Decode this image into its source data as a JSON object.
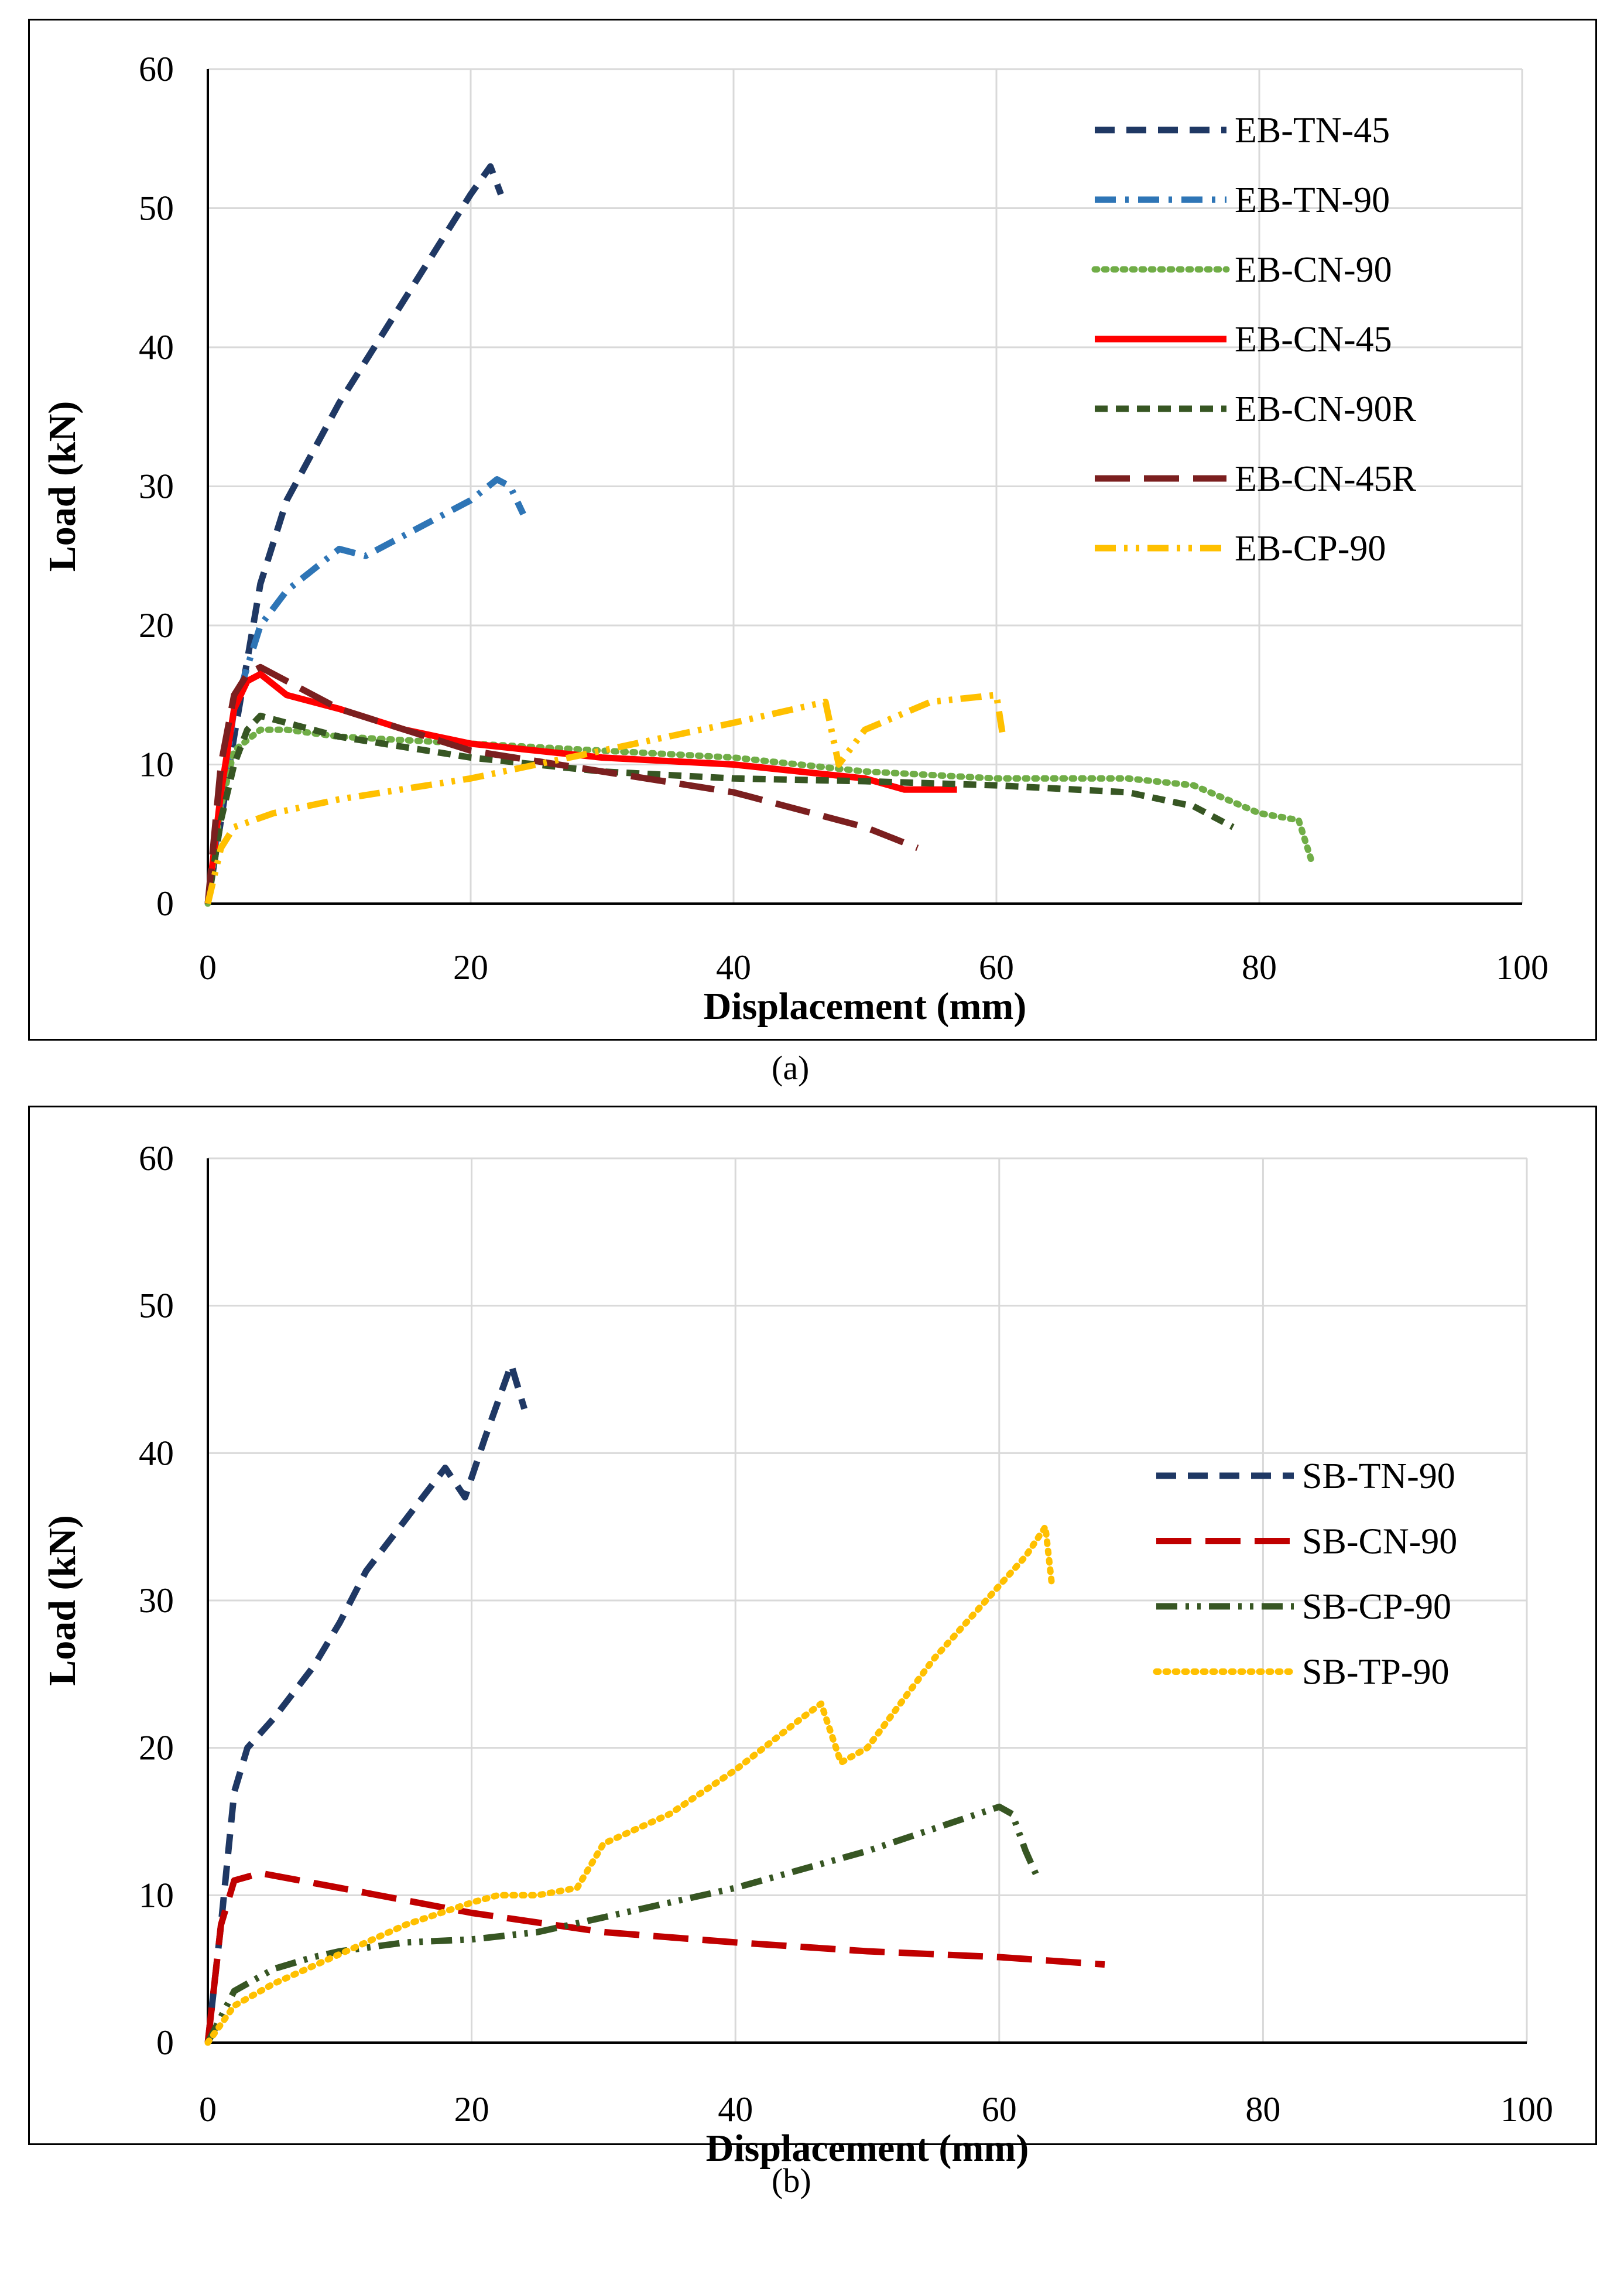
{
  "figure": {
    "captions": [
      "(a)",
      "(b)"
    ]
  },
  "chart_data": [
    {
      "type": "line",
      "panel": "(a)",
      "title": "",
      "xlabel": "Displacement (mm)",
      "ylabel": "Load (kN)",
      "xlim": [
        0,
        100
      ],
      "ylim": [
        0,
        60
      ],
      "xticks": [
        "0",
        "20",
        "40",
        "60",
        "80",
        "100"
      ],
      "yticks": [
        "0",
        "10",
        "20",
        "30",
        "40",
        "50",
        "60"
      ],
      "grid": true,
      "legend_position": "top-right",
      "series": [
        {
          "name": "EB-TN-45",
          "color": "#1f3864",
          "dash": "dash",
          "x": [
            0,
            2,
            4,
            6,
            8,
            10,
            12,
            14,
            16,
            18,
            20,
            21.5,
            22.3
          ],
          "y": [
            0,
            12,
            23,
            29,
            32.5,
            36,
            39,
            42,
            45,
            48,
            51,
            53,
            51
          ]
        },
        {
          "name": "EB-TN-90",
          "color": "#2e75b6",
          "dash": "dashdot",
          "x": [
            0,
            2,
            4,
            6,
            8,
            10,
            12,
            14,
            16,
            18,
            20,
            22,
            23,
            24
          ],
          "y": [
            0,
            14,
            20,
            22.5,
            24,
            25.5,
            25,
            26,
            27,
            28,
            29,
            30.5,
            30,
            28
          ]
        },
        {
          "name": "EB-CN-90",
          "color": "#70ad47",
          "dash": "dot",
          "x": [
            0,
            1,
            2,
            4,
            6,
            10,
            20,
            30,
            40,
            50,
            60,
            70,
            75,
            80,
            83,
            84
          ],
          "y": [
            0,
            7,
            11,
            12.5,
            12.5,
            12,
            11.5,
            11,
            10.5,
            9.5,
            9,
            9,
            8.5,
            6.5,
            6,
            3
          ]
        },
        {
          "name": "EB-CN-45",
          "color": "#ff0000",
          "dash": "solid",
          "x": [
            0,
            1,
            2,
            3,
            4,
            6,
            10,
            15,
            20,
            25,
            30,
            40,
            50,
            53,
            57
          ],
          "y": [
            0,
            8,
            14,
            16,
            16.5,
            15,
            14,
            12.5,
            11.5,
            11,
            10.5,
            10,
            9,
            8.2,
            8.2
          ]
        },
        {
          "name": "EB-CN-90R",
          "color": "#375623",
          "dash": "shortdash",
          "x": [
            0,
            1,
            2,
            3,
            4,
            6,
            10,
            20,
            30,
            40,
            50,
            60,
            70,
            75,
            78
          ],
          "y": [
            0,
            6,
            10,
            12.5,
            13.5,
            13,
            12,
            10.5,
            9.5,
            9,
            8.8,
            8.5,
            8,
            7,
            5.5
          ]
        },
        {
          "name": "EB-CN-45R",
          "color": "#7b1f1f",
          "dash": "longdash",
          "x": [
            0,
            1,
            2,
            3,
            4,
            6,
            10,
            20,
            30,
            40,
            50,
            54
          ],
          "y": [
            0,
            10,
            15,
            16.5,
            17,
            16,
            14,
            11,
            9.5,
            8,
            5.5,
            4
          ]
        },
        {
          "name": "EB-CP-90",
          "color": "#ffc000",
          "dash": "dashdotdot",
          "x": [
            0,
            1,
            2,
            5,
            10,
            20,
            30,
            40,
            47,
            48,
            50,
            55,
            60,
            60.5
          ],
          "y": [
            0,
            4,
            5.5,
            6.5,
            7.5,
            9,
            11,
            13,
            14.5,
            10,
            12.5,
            14.5,
            15,
            12
          ]
        }
      ]
    },
    {
      "type": "line",
      "panel": "(b)",
      "title": "",
      "xlabel": "Displacement (mm)",
      "ylabel": "Load (kN)",
      "xlim": [
        0,
        100
      ],
      "ylim": [
        0,
        60
      ],
      "xticks": [
        "0",
        "20",
        "40",
        "60",
        "80",
        "100"
      ],
      "yticks": [
        "0",
        "10",
        "20",
        "30",
        "40",
        "50",
        "60"
      ],
      "grid": true,
      "legend_position": "right",
      "series": [
        {
          "name": "SB-TN-90",
          "color": "#1f3864",
          "dash": "dash",
          "x": [
            0,
            1,
            2,
            3,
            5,
            8,
            10,
            12,
            15,
            18,
            19.5,
            21,
            23,
            24
          ],
          "y": [
            0,
            8,
            17,
            20,
            22,
            25.5,
            28.5,
            32,
            35.5,
            39,
            37,
            41,
            46,
            43
          ]
        },
        {
          "name": "SB-CN-90",
          "color": "#c00000",
          "dash": "longdash",
          "x": [
            0,
            1,
            2,
            4,
            10,
            20,
            30,
            40,
            50,
            60,
            68
          ],
          "y": [
            0,
            8,
            11,
            11.5,
            10.5,
            8.8,
            7.5,
            6.8,
            6.2,
            5.8,
            5.3
          ]
        },
        {
          "name": "SB-CP-90",
          "color": "#375623",
          "dash": "dashdotdot",
          "x": [
            0,
            2,
            5,
            8,
            10,
            15,
            20,
            25,
            30,
            40,
            50,
            60,
            61,
            62,
            63
          ],
          "y": [
            0,
            3.5,
            5,
            5.8,
            6.2,
            6.8,
            7,
            7.5,
            8.5,
            10.5,
            13,
            16,
            15.5,
            13,
            11
          ]
        },
        {
          "name": "SB-TP-90",
          "color": "#ffc000",
          "dash": "dot",
          "x": [
            0,
            2,
            5,
            10,
            15,
            20,
            22,
            25,
            28,
            30,
            35,
            40,
            45,
            46.5,
            48,
            50,
            55,
            60,
            62,
            63.5,
            64
          ],
          "y": [
            0,
            2.5,
            4,
            6,
            8,
            9.5,
            10,
            10,
            10.5,
            13.5,
            15.5,
            18.5,
            22,
            23,
            19,
            20,
            26,
            31,
            33,
            35,
            31
          ]
        }
      ]
    }
  ]
}
